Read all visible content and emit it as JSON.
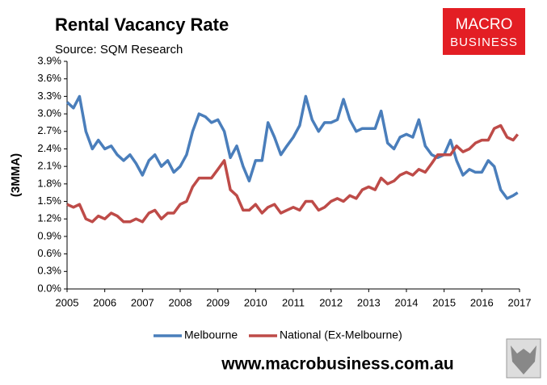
{
  "chart_data": {
    "type": "line",
    "title": "Rental Vacancy Rate",
    "subtitle": "Source: SQM Research",
    "ylabel": "(3MMA)",
    "logo": [
      "MACRO",
      "BUSINESS"
    ],
    "footer": "www.macrobusiness.com.au",
    "x": [
      2005,
      2005.17,
      2005.33,
      2005.5,
      2005.67,
      2005.83,
      2006,
      2006.17,
      2006.33,
      2006.5,
      2006.67,
      2006.83,
      2007,
      2007.17,
      2007.33,
      2007.5,
      2007.67,
      2007.83,
      2008,
      2008.17,
      2008.33,
      2008.5,
      2008.67,
      2008.83,
      2009,
      2009.17,
      2009.33,
      2009.5,
      2009.67,
      2009.83,
      2010,
      2010.17,
      2010.33,
      2010.5,
      2010.67,
      2010.83,
      2011,
      2011.17,
      2011.33,
      2011.5,
      2011.67,
      2011.83,
      2012,
      2012.17,
      2012.33,
      2012.5,
      2012.67,
      2012.83,
      2013,
      2013.17,
      2013.33,
      2013.5,
      2013.67,
      2013.83,
      2014,
      2014.17,
      2014.33,
      2014.5,
      2014.67,
      2014.83,
      2015,
      2015.17,
      2015.33,
      2015.5,
      2015.67,
      2015.83,
      2016,
      2016.17,
      2016.33,
      2016.5,
      2016.67,
      2016.83,
      2016.95
    ],
    "series": [
      {
        "name": "Melbourne",
        "color": "#4a7ebb",
        "values": [
          3.2,
          3.1,
          3.3,
          2.7,
          2.4,
          2.55,
          2.4,
          2.45,
          2.3,
          2.2,
          2.3,
          2.15,
          1.95,
          2.2,
          2.3,
          2.1,
          2.2,
          2.0,
          2.1,
          2.3,
          2.7,
          3.0,
          2.95,
          2.85,
          2.9,
          2.7,
          2.25,
          2.45,
          2.1,
          1.85,
          2.2,
          2.2,
          2.85,
          2.6,
          2.3,
          2.45,
          2.6,
          2.8,
          3.3,
          2.9,
          2.7,
          2.85,
          2.85,
          2.9,
          3.25,
          2.9,
          2.7,
          2.75,
          2.75,
          2.75,
          3.05,
          2.5,
          2.4,
          2.6,
          2.65,
          2.6,
          2.9,
          2.45,
          2.3,
          2.25,
          2.3,
          2.55,
          2.2,
          1.95,
          2.05,
          2.0,
          2.0,
          2.2,
          2.1,
          1.7,
          1.55,
          1.6,
          1.65
        ]
      },
      {
        "name": "National (Ex-Melbourne)",
        "color": "#be4b48",
        "values": [
          1.45,
          1.4,
          1.45,
          1.2,
          1.15,
          1.25,
          1.2,
          1.3,
          1.25,
          1.15,
          1.15,
          1.2,
          1.15,
          1.3,
          1.35,
          1.2,
          1.3,
          1.3,
          1.45,
          1.5,
          1.75,
          1.9,
          1.9,
          1.9,
          2.05,
          2.2,
          1.7,
          1.6,
          1.35,
          1.35,
          1.45,
          1.3,
          1.4,
          1.45,
          1.3,
          1.35,
          1.4,
          1.35,
          1.5,
          1.5,
          1.35,
          1.4,
          1.5,
          1.55,
          1.5,
          1.6,
          1.55,
          1.7,
          1.75,
          1.7,
          1.9,
          1.8,
          1.85,
          1.95,
          2.0,
          1.95,
          2.05,
          2.0,
          2.15,
          2.3,
          2.3,
          2.3,
          2.45,
          2.35,
          2.4,
          2.5,
          2.55,
          2.55,
          2.75,
          2.8,
          2.6,
          2.55,
          2.65
        ]
      }
    ],
    "xlim": [
      2005,
      2017
    ],
    "xticks": [
      2005,
      2006,
      2007,
      2008,
      2009,
      2010,
      2011,
      2012,
      2013,
      2014,
      2015,
      2016,
      2017
    ],
    "ylim": [
      0,
      3.9
    ],
    "yticks": [
      {
        "value": 0,
        "label": "0.0%"
      },
      {
        "value": 0.3,
        "label": "0.3%"
      },
      {
        "value": 0.6,
        "label": "0.6%"
      },
      {
        "value": 0.9,
        "label": "0.9%"
      },
      {
        "value": 1.2,
        "label": "1.2%"
      },
      {
        "value": 1.5,
        "label": "1.5%"
      },
      {
        "value": 1.8,
        "label": "1.8%"
      },
      {
        "value": 2.1,
        "label": "2.1%"
      },
      {
        "value": 2.4,
        "label": "2.4%"
      },
      {
        "value": 2.7,
        "label": "2.7%"
      },
      {
        "value": 3.0,
        "label": "3.0%"
      },
      {
        "value": 3.3,
        "label": "3.3%"
      },
      {
        "value": 3.6,
        "label": "3.6%"
      },
      {
        "value": 3.9,
        "label": "3.9%"
      }
    ],
    "legend": "bottom"
  }
}
